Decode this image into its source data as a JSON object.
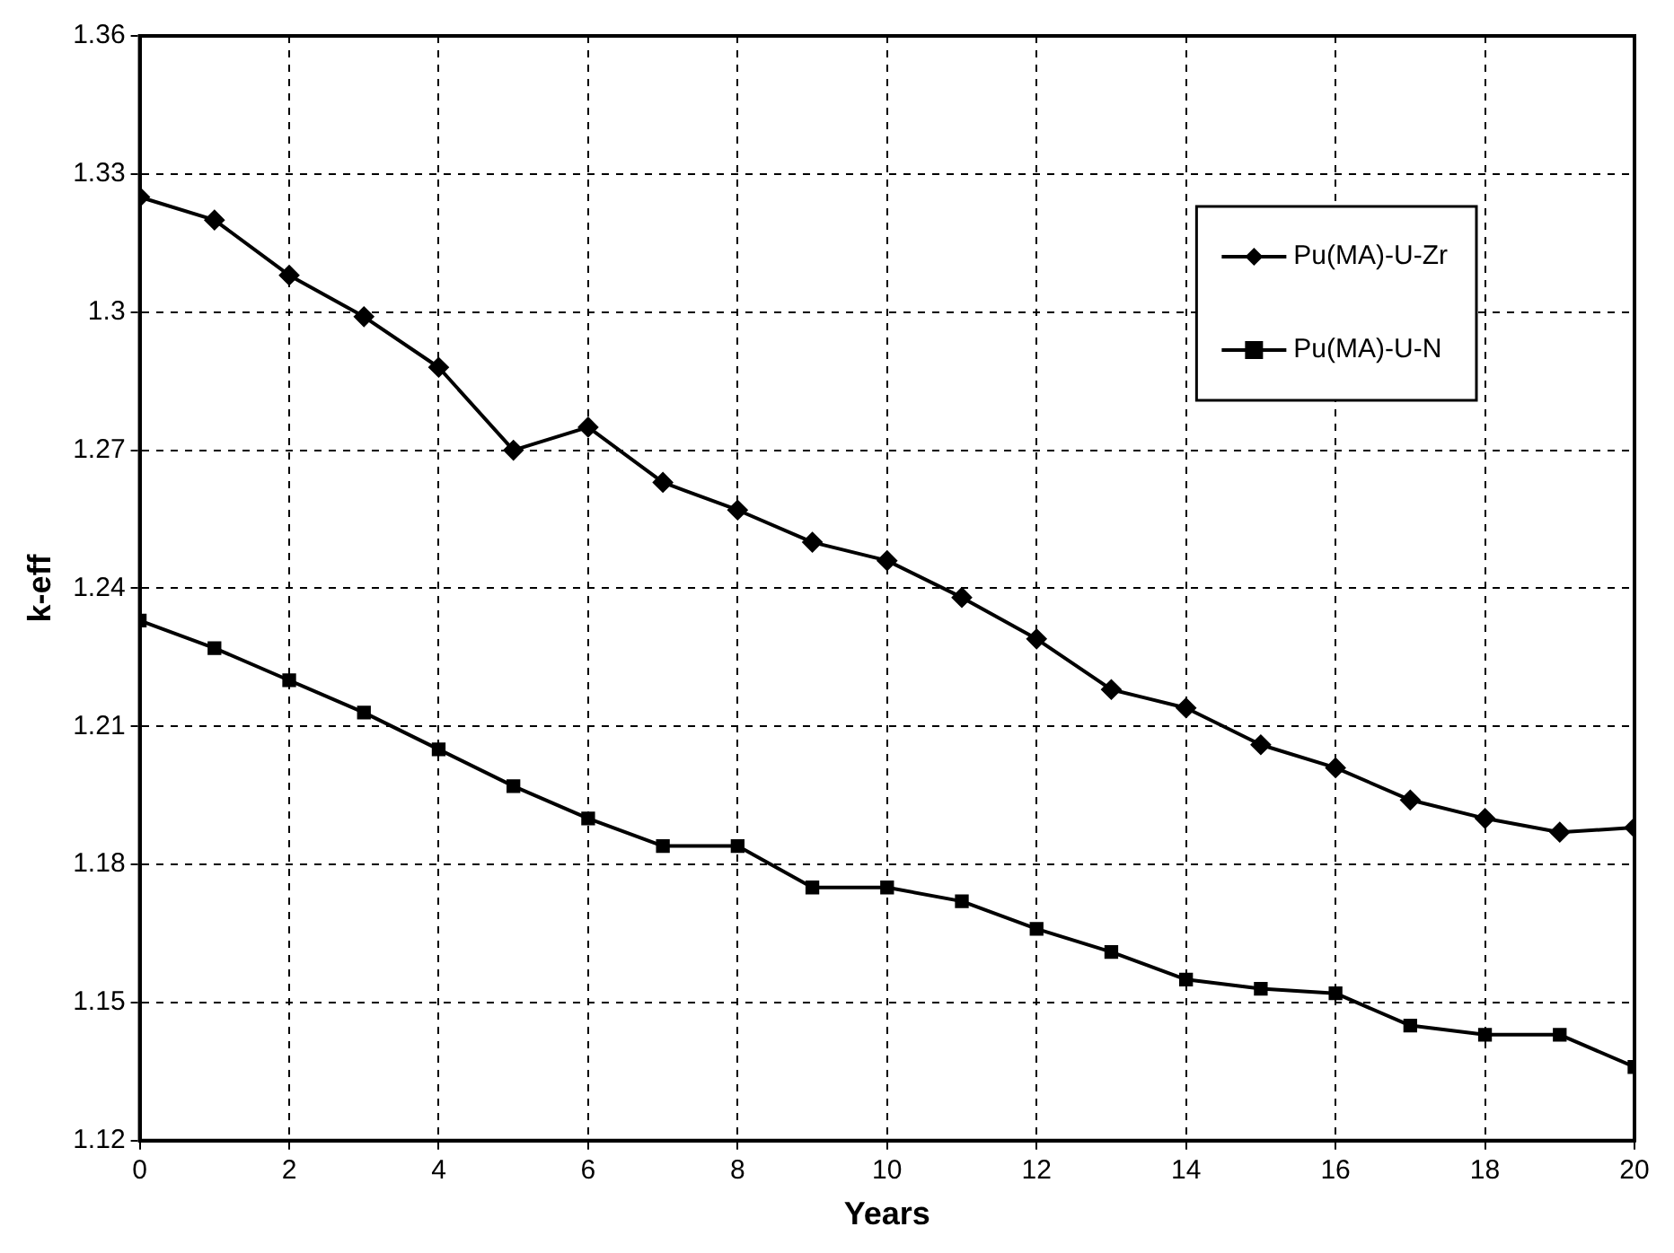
{
  "chart_data": {
    "type": "line",
    "xlabel": "Years",
    "ylabel": "k-eff",
    "x": [
      0,
      1,
      2,
      3,
      4,
      5,
      6,
      7,
      8,
      9,
      10,
      11,
      12,
      13,
      14,
      15,
      16,
      17,
      18,
      19,
      20
    ],
    "series": [
      {
        "name": "Pu(MA)-U-Zr",
        "color": "#000000",
        "marker": "diamond",
        "values": [
          1.325,
          1.32,
          1.308,
          1.299,
          1.288,
          1.27,
          1.275,
          1.263,
          1.257,
          1.25,
          1.246,
          1.238,
          1.229,
          1.218,
          1.214,
          1.206,
          1.201,
          1.194,
          1.19,
          1.187,
          1.188
        ]
      },
      {
        "name": "Pu(MA)-U-N",
        "color": "#000000",
        "marker": "square",
        "values": [
          1.233,
          1.227,
          1.22,
          1.213,
          1.205,
          1.197,
          1.19,
          1.184,
          1.184,
          1.175,
          1.175,
          1.172,
          1.166,
          1.161,
          1.155,
          1.153,
          1.152,
          1.145,
          1.143,
          1.143,
          1.136
        ]
      }
    ],
    "xlim": [
      0,
      20
    ],
    "xticks": [
      0,
      2,
      4,
      6,
      8,
      10,
      12,
      14,
      16,
      18,
      20
    ],
    "ylim": [
      1.12,
      1.36
    ],
    "yticks": [
      1.12,
      1.15,
      1.18,
      1.21,
      1.24,
      1.27,
      1.3,
      1.33,
      1.36
    ],
    "grid": true,
    "legend": "top right",
    "line_style": "solid"
  }
}
